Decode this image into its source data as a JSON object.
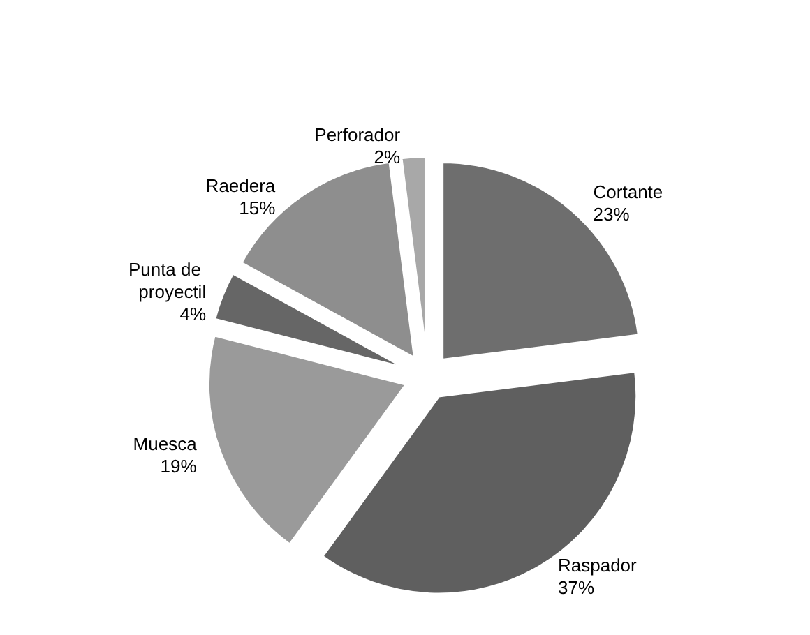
{
  "chart_data": {
    "type": "pie",
    "categories": [
      "Cortante",
      "Raspador",
      "Muesca",
      "Punta de proyectil",
      "Raedera",
      "Perforador"
    ],
    "values": [
      23,
      37,
      19,
      4,
      15,
      2
    ],
    "colors": [
      "#6e6e6e",
      "#5f5f5f",
      "#9a9a9a",
      "#666666",
      "#8e8e8e",
      "#a8a8a8"
    ],
    "value_labels": [
      "23%",
      "37%",
      "19%",
      "4%",
      "15%",
      "2%"
    ]
  }
}
